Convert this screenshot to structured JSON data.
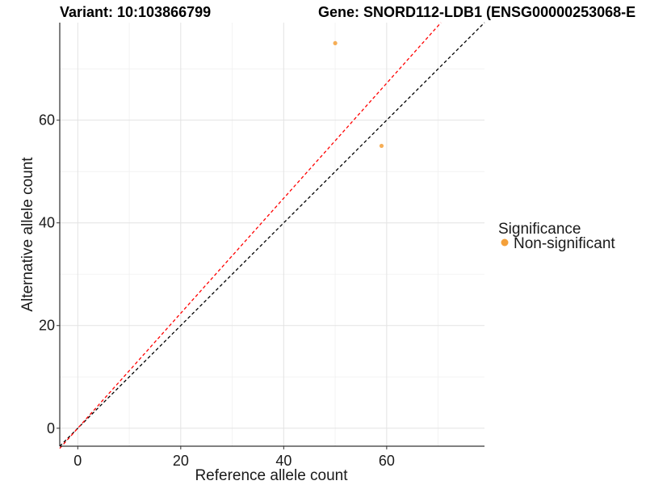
{
  "chart_data": {
    "type": "scatter",
    "title_left": "Variant: 10:103866799",
    "title_right": "Gene: SNORD112-LDB1 (ENSG00000253068-E",
    "xlabel": "Reference allele count",
    "ylabel": "Alternative allele count",
    "xlim": [
      -3.5,
      79
    ],
    "ylim": [
      -3.5,
      79
    ],
    "x_ticks": [
      0,
      20,
      40,
      60
    ],
    "y_ticks": [
      0,
      20,
      40,
      60
    ],
    "grid": true,
    "series": [
      {
        "name": "Non-significant",
        "color": "#F4A03A",
        "points": [
          {
            "x": 50,
            "y": 75
          },
          {
            "x": 59,
            "y": 55
          }
        ]
      }
    ],
    "reference_lines": [
      {
        "name": "identity",
        "slope": 1.0,
        "intercept": 0,
        "color": "#000000",
        "style": "dashed"
      },
      {
        "name": "fitted",
        "slope": 1.12,
        "intercept": 0,
        "color": "#FF0000",
        "style": "dashed"
      }
    ],
    "legend": {
      "title": "Significance",
      "position": "right",
      "entries": [
        {
          "label": "Non-significant",
          "color": "#F4A03A"
        }
      ]
    }
  }
}
